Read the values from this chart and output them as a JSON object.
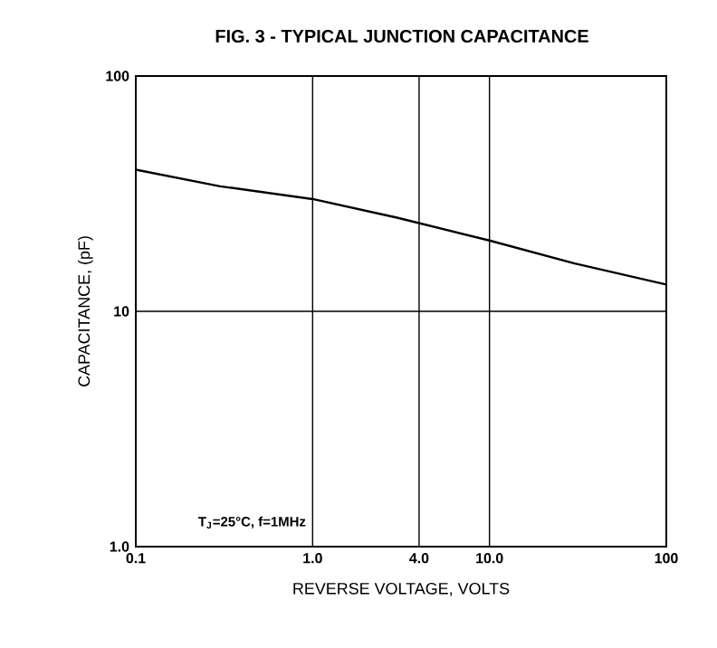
{
  "chart_data": {
    "type": "line",
    "title": "FIG. 3 - TYPICAL JUNCTION CAPACITANCE",
    "xlabel": "REVERSE VOLTAGE, VOLTS",
    "ylabel": "CAPACITANCE, (pF)",
    "annotations": [
      "T$_{J}$=25°C, f=1MHz"
    ],
    "x": [
      0.1,
      0.3,
      1,
      3,
      10,
      30,
      100
    ],
    "series": [
      {
        "color": "#000000",
        "values": [
          40,
          34,
          30,
          25,
          20,
          16,
          13
        ]
      }
    ],
    "log": "xy",
    "grid": true,
    "marker": "none",
    "line_style": "solid",
    "xlim": [
      0.1,
      100
    ],
    "ylim": [
      1,
      100
    ],
    "xticks": [
      0.1,
      {
        "value": 1,
        "label": "1.0"
      },
      {
        "value": 4,
        "label": "4.0"
      },
      {
        "value": 10,
        "label": "10.0"
      },
      100
    ],
    "yticks": [
      {
        "value": 1,
        "label": "1.0"
      },
      10,
      100
    ]
  }
}
